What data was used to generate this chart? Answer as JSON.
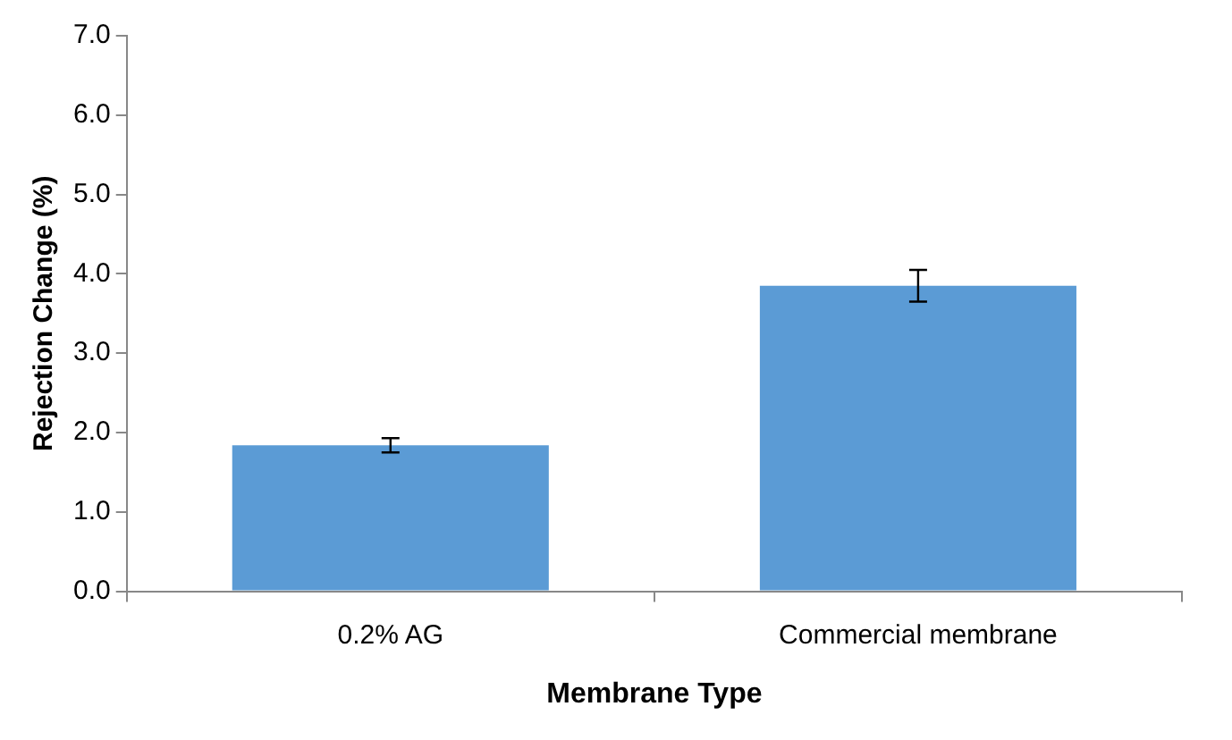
{
  "chart_data": {
    "type": "bar",
    "xlabel": "Membrane Type",
    "ylabel": "Rejection Change (%)",
    "categories": [
      "0.2% AG",
      "Commercial membrane"
    ],
    "values": [
      1.84,
      3.85
    ],
    "color": "#5b9bd5",
    "errors": [
      0.09,
      0.2
    ],
    "ylim": [
      0,
      7
    ],
    "yticks": [
      {
        "value": 0,
        "label": "0.0"
      },
      {
        "value": 1,
        "label": "1.0"
      },
      {
        "value": 2,
        "label": "2.0"
      },
      {
        "value": 3,
        "label": "3.0"
      },
      {
        "value": 4,
        "label": "4.0"
      },
      {
        "value": 5,
        "label": "5.0"
      },
      {
        "value": 6,
        "label": "6.0"
      },
      {
        "value": 7,
        "label": "7.0"
      }
    ],
    "grid": false,
    "legend": false
  }
}
